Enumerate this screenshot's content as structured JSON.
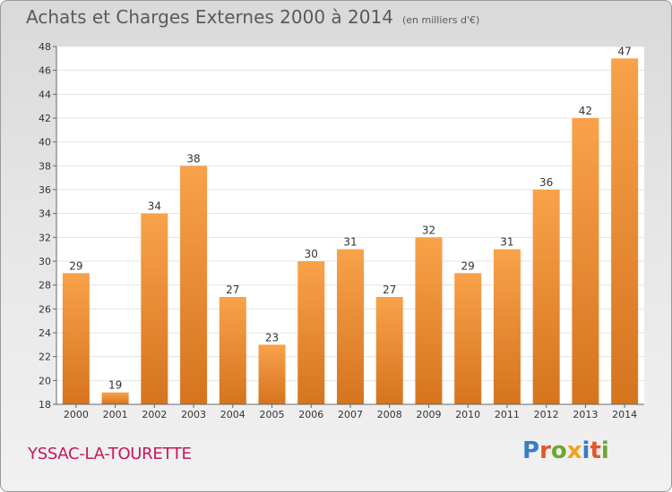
{
  "title": "Achats et Charges Externes 2000 à 2014",
  "unit_note": "(en milliers d'€)",
  "location": "YSSAC-LA-TOURETTE",
  "brand": "Proxiti",
  "colors": {
    "bar_light": "#f8a24a",
    "bar_dark": "#d6741e",
    "location_text": "#c2185b",
    "brand_letters": [
      "#3a7cc4",
      "#e2572a",
      "#6aa832",
      "#f0a21a",
      "#3a7cc4",
      "#e2572a",
      "#6aa832"
    ]
  },
  "chart_data": {
    "type": "bar",
    "categories": [
      "2000",
      "2001",
      "2002",
      "2003",
      "2004",
      "2005",
      "2006",
      "2007",
      "2008",
      "2009",
      "2010",
      "2011",
      "2012",
      "2013",
      "2014"
    ],
    "values": [
      29,
      19,
      34,
      38,
      27,
      23,
      30,
      31,
      27,
      32,
      29,
      31,
      36,
      42,
      47
    ],
    "ylim": [
      18,
      48
    ],
    "yticks": [
      18,
      20,
      22,
      24,
      26,
      28,
      30,
      32,
      34,
      36,
      38,
      40,
      42,
      44,
      46,
      48
    ],
    "grid": true,
    "legend": "none"
  }
}
